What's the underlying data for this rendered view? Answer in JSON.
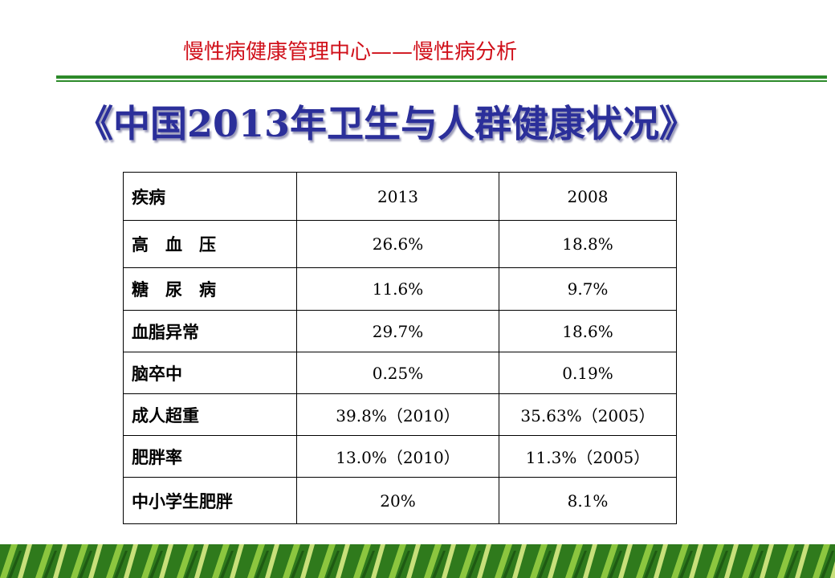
{
  "header": {
    "title": "慢性病健康管理中心——慢性病分析"
  },
  "title": "《中国2013年卫生与人群健康状况》",
  "table": {
    "columns": [
      "疾病",
      "2013",
      "2008"
    ],
    "rows": [
      [
        "高　血　压",
        "26.6%",
        "18.8%"
      ],
      [
        "糖　尿　病",
        "11.6%",
        "9.7%"
      ],
      [
        "血脂异常",
        "29.7%",
        "18.6%"
      ],
      [
        "脑卒中",
        "0.25%",
        "0.19%"
      ],
      [
        "成人超重",
        "39.8%（2010）",
        "35.63%（2005）"
      ],
      [
        "肥胖率",
        "13.0%（2010）",
        "11.3%（2005）"
      ],
      [
        "中小学生肥胖",
        "20%",
        "8.1%"
      ]
    ]
  }
}
